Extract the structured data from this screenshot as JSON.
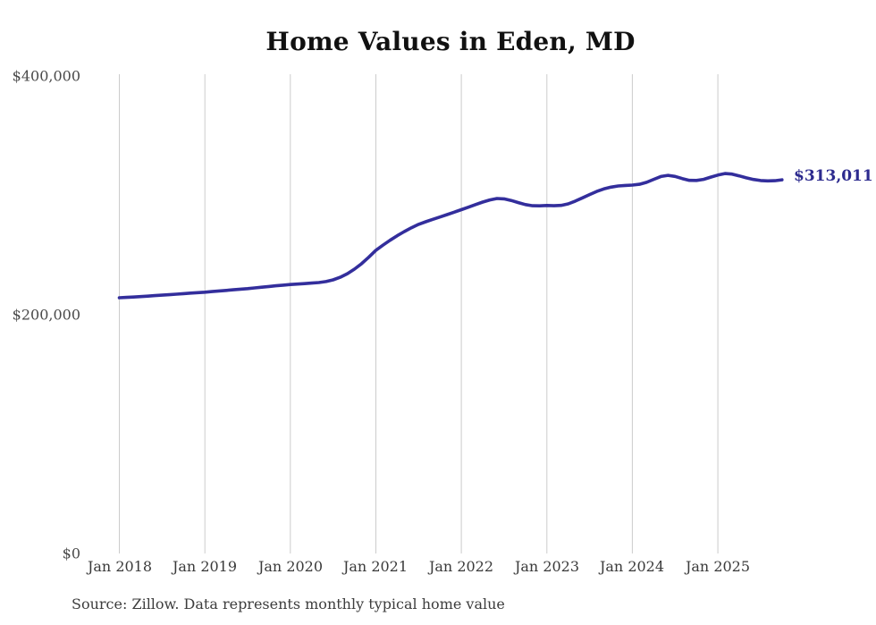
{
  "ui": {
    "title": "Home Values in Eden, MD",
    "source_note": "Source: Zillow. Data represents monthly typical home value",
    "end_label": "$313,011"
  },
  "colors": {
    "line": "#332e9c",
    "end_label": "#2c2a8e",
    "gridline": "#cccccc",
    "background": "#ffffff",
    "title_text": "#111111",
    "axis_text": "#4a4a4a"
  },
  "chart_data": {
    "type": "line",
    "title": "Home Values in Eden, MD",
    "xlabel": "",
    "ylabel": "",
    "x_tick_labels": [
      "Jan 2018",
      "Jan 2019",
      "Jan 2020",
      "Jan 2021",
      "Jan 2022",
      "Jan 2023",
      "Jan 2024",
      "Jan 2025"
    ],
    "x_tick_month_indices": [
      0,
      12,
      24,
      36,
      48,
      60,
      72,
      84
    ],
    "y_ticks": [
      {
        "label": "$0",
        "value": 0
      },
      {
        "label": "$200,000",
        "value": 200000
      },
      {
        "label": "$400,000",
        "value": 400000
      }
    ],
    "ylim": [
      0,
      400000
    ],
    "grid": "vertical-only",
    "legend": "none",
    "annotation": {
      "text": "$313,011",
      "value": 313011
    },
    "series": [
      {
        "name": "Monthly typical home value",
        "start_month": "2018-01",
        "end_month": "2025-10",
        "frequency": "monthly",
        "values": [
          214200,
          214500,
          214800,
          215200,
          215600,
          216000,
          216400,
          216800,
          217200,
          217700,
          218100,
          218500,
          218900,
          219400,
          219900,
          220400,
          220900,
          221400,
          221900,
          222500,
          223100,
          223700,
          224300,
          224800,
          225300,
          225700,
          226100,
          226500,
          227000,
          227800,
          229200,
          231400,
          234400,
          238200,
          242800,
          248200,
          254000,
          258300,
          262400,
          266200,
          269700,
          272900,
          275700,
          277900,
          279900,
          281900,
          283900,
          285900,
          288000,
          290100,
          292300,
          294400,
          296200,
          297400,
          297100,
          295700,
          293900,
          292300,
          291300,
          291200,
          291500,
          291300,
          291600,
          292900,
          295200,
          297900,
          300700,
          303300,
          305400,
          306900,
          307900,
          308300,
          308600,
          309300,
          310900,
          313400,
          315800,
          316800,
          315900,
          314100,
          312600,
          312500,
          313400,
          315300,
          317000,
          318300,
          317800,
          316300,
          314700,
          313300,
          312400,
          312100,
          312300,
          313011
        ]
      }
    ]
  }
}
